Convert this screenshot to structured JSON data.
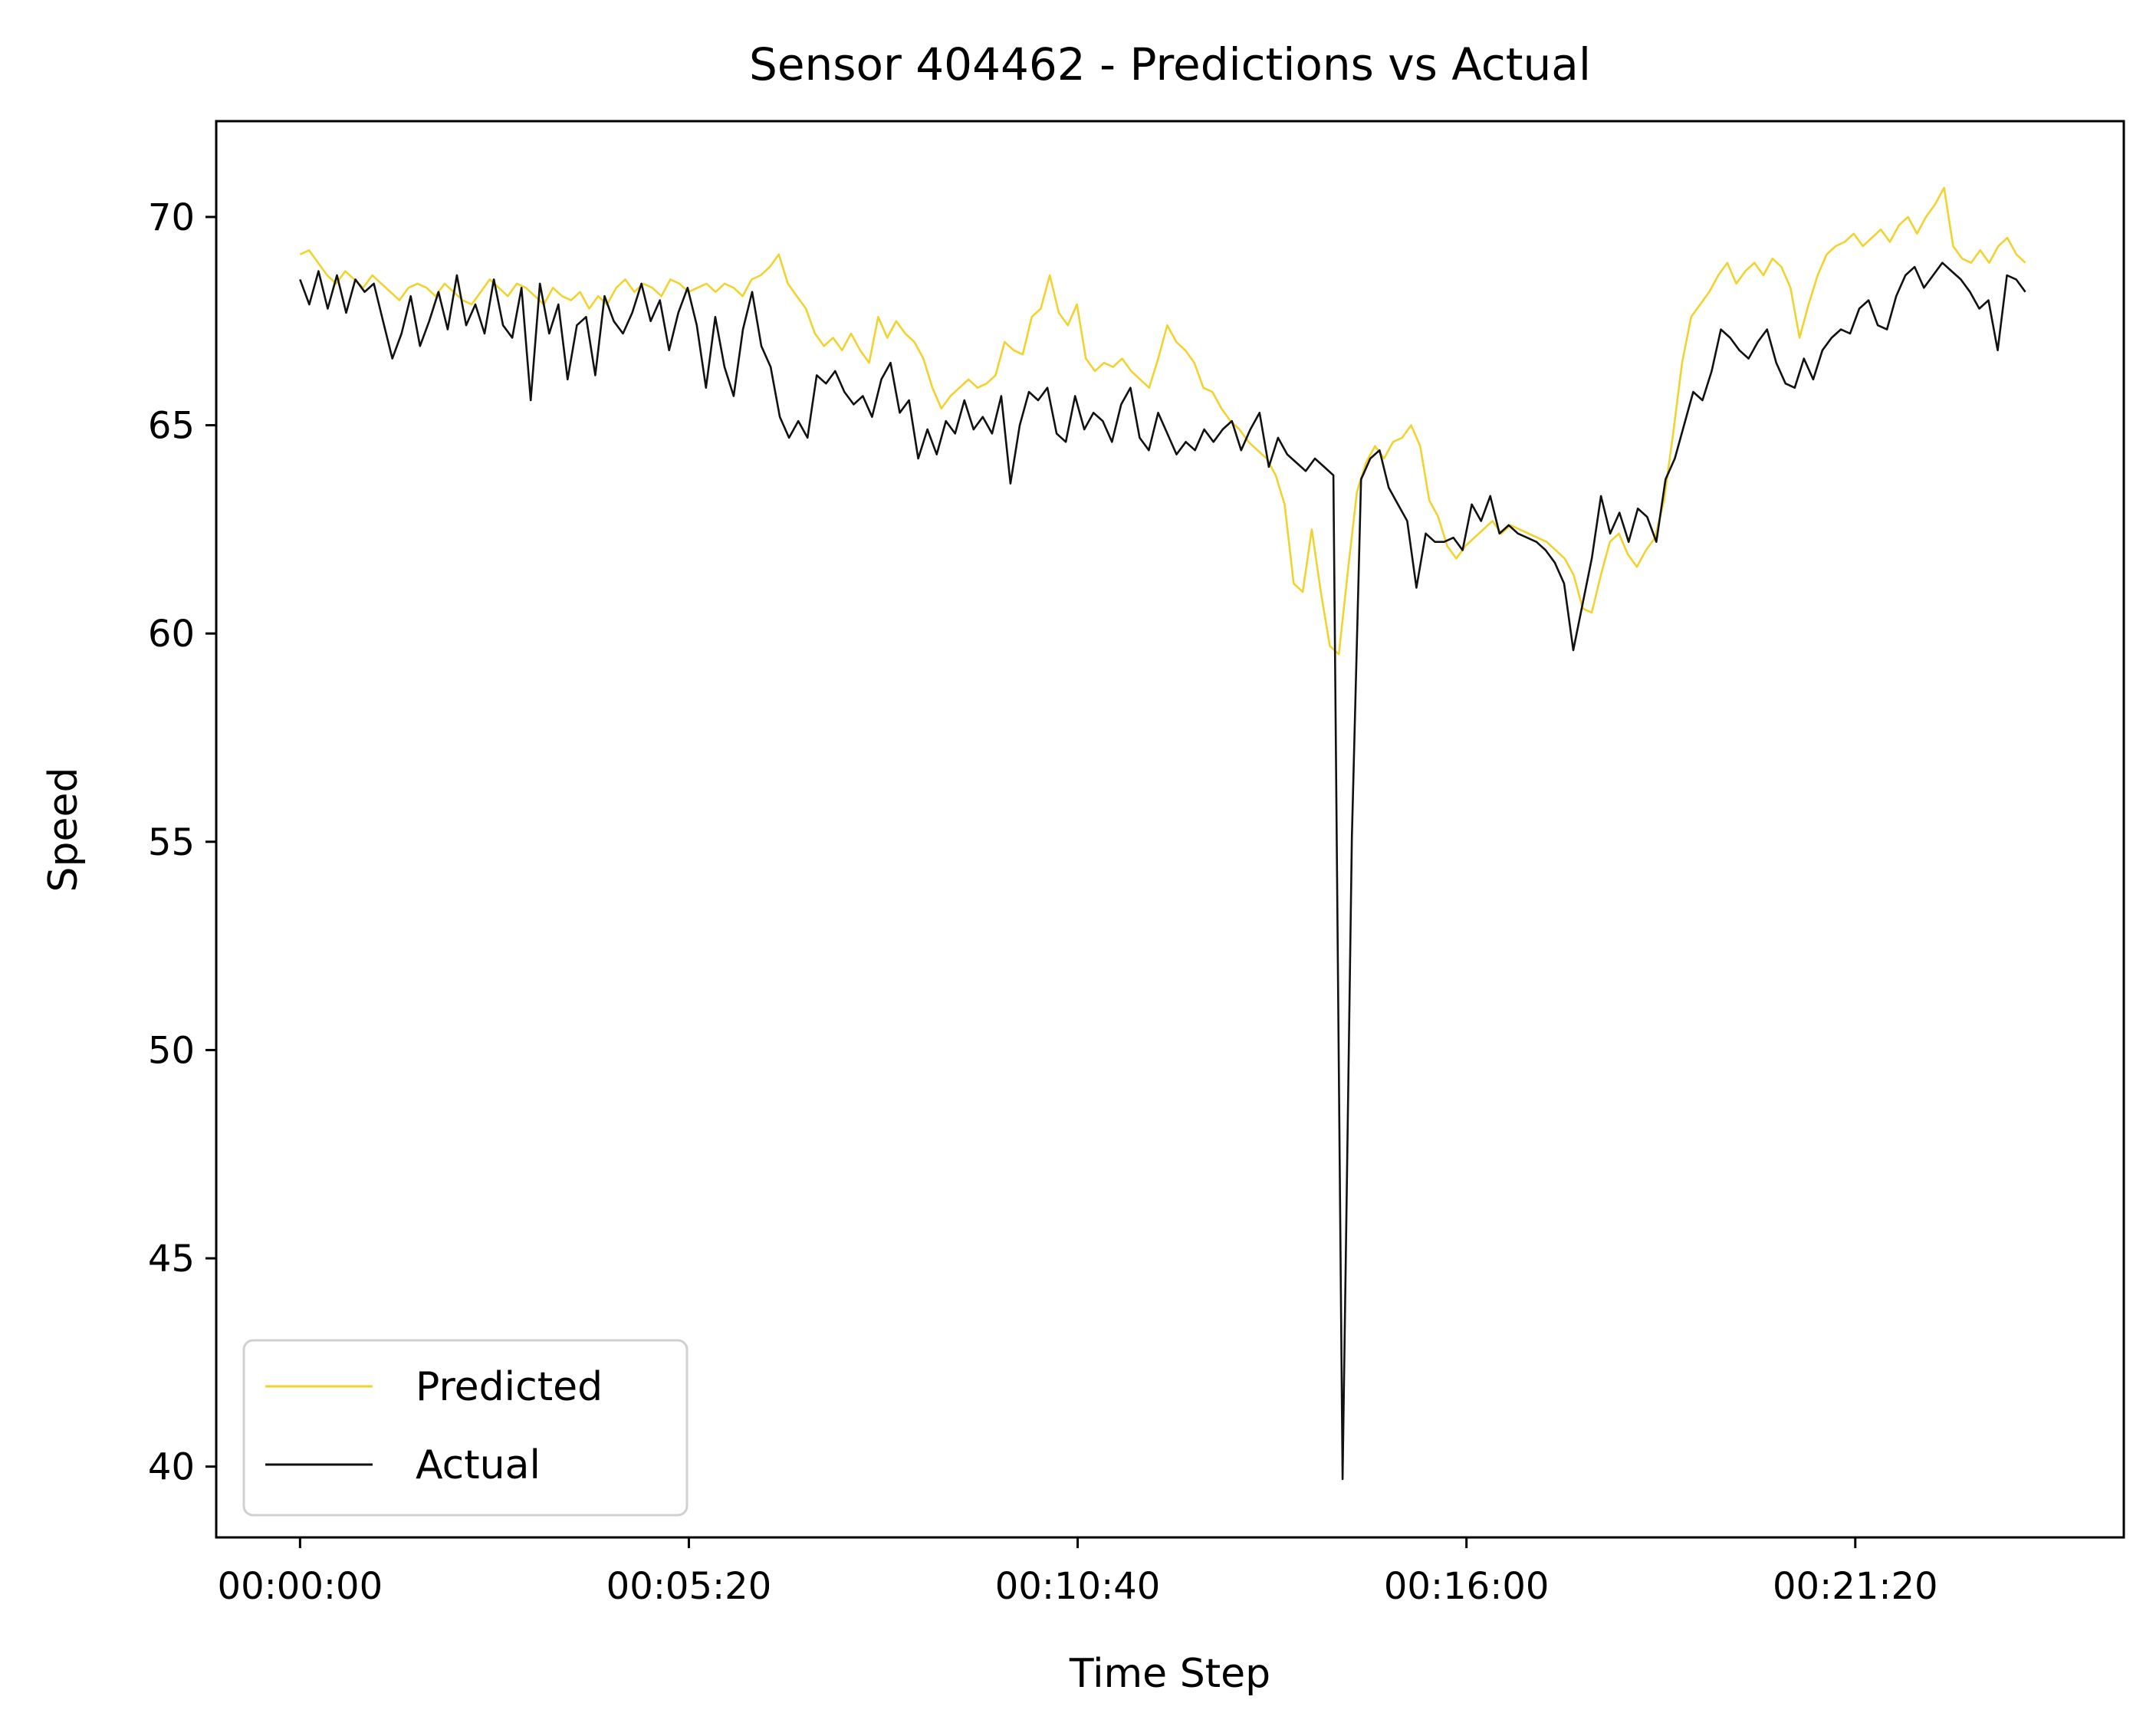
{
  "chart_data": {
    "type": "line",
    "title": "Sensor 404462 - Predictions vs Actual",
    "xlabel": "Time Step",
    "ylabel": "Speed",
    "x_start": "00:00:00",
    "x_end": "00:23:40",
    "xlim": [
      "-00:01:09",
      "00:25:01"
    ],
    "ylim": [
      38.3,
      72.3
    ],
    "x_ticks": [
      "00:00:00",
      "00:05:20",
      "00:10:40",
      "00:16:00",
      "00:21:20"
    ],
    "y_ticks": [
      40,
      45,
      50,
      55,
      60,
      65,
      70
    ],
    "grid": false,
    "legend_position": "lower-left",
    "series": [
      {
        "name": "Predicted",
        "color": "#f2d22e",
        "values": [
          69.1,
          69.2,
          68.9,
          68.6,
          68.4,
          68.7,
          68.5,
          68.3,
          68.6,
          68.4,
          68.2,
          68.0,
          68.3,
          68.4,
          68.3,
          68.1,
          68.4,
          68.2,
          68.0,
          67.9,
          68.2,
          68.5,
          68.3,
          68.1,
          68.4,
          68.3,
          68.1,
          67.9,
          68.3,
          68.1,
          68.0,
          68.2,
          67.8,
          68.1,
          67.9,
          68.3,
          68.5,
          68.2,
          68.4,
          68.3,
          68.1,
          68.5,
          68.4,
          68.2,
          68.3,
          68.4,
          68.2,
          68.4,
          68.3,
          68.1,
          68.5,
          68.6,
          68.8,
          69.1,
          68.4,
          68.1,
          67.8,
          67.2,
          66.9,
          67.1,
          66.8,
          67.2,
          66.8,
          66.5,
          67.6,
          67.1,
          67.5,
          67.2,
          67.0,
          66.6,
          65.9,
          65.4,
          65.7,
          65.9,
          66.1,
          65.9,
          66.0,
          66.2,
          67.0,
          66.8,
          66.7,
          67.6,
          67.8,
          68.6,
          67.7,
          67.4,
          67.9,
          66.6,
          66.3,
          66.5,
          66.4,
          66.6,
          66.3,
          66.1,
          65.9,
          66.6,
          67.4,
          67.0,
          66.8,
          66.5,
          65.9,
          65.8,
          65.4,
          65.1,
          64.9,
          64.6,
          64.4,
          64.2,
          63.8,
          63.1,
          61.2,
          61.0,
          62.5,
          61.0,
          59.7,
          59.5,
          61.5,
          63.4,
          64.1,
          64.5,
          64.2,
          64.6,
          64.7,
          65.0,
          64.5,
          63.2,
          62.8,
          62.1,
          61.8,
          62.1,
          62.3,
          62.5,
          62.7,
          62.4,
          62.6,
          62.5,
          62.4,
          62.3,
          62.2,
          62.0,
          61.8,
          61.4,
          60.6,
          60.5,
          61.4,
          62.2,
          62.4,
          61.9,
          61.6,
          62.0,
          62.3,
          63.2,
          64.8,
          66.5,
          67.6,
          67.9,
          68.2,
          68.6,
          68.9,
          68.4,
          68.7,
          68.9,
          68.6,
          69.0,
          68.8,
          68.3,
          67.1,
          67.9,
          68.6,
          69.1,
          69.3,
          69.4,
          69.6,
          69.3,
          69.5,
          69.7,
          69.4,
          69.8,
          70.0,
          69.6,
          70.0,
          70.3,
          70.7,
          69.3,
          69.0,
          68.9,
          69.2,
          68.9,
          69.3,
          69.5,
          69.1,
          68.9
        ]
      },
      {
        "name": "Actual",
        "color": "#111111",
        "values": [
          68.5,
          67.9,
          68.7,
          67.8,
          68.6,
          67.7,
          68.5,
          68.2,
          68.4,
          67.5,
          66.6,
          67.2,
          68.1,
          66.9,
          67.5,
          68.2,
          67.3,
          68.6,
          67.4,
          67.9,
          67.2,
          68.5,
          67.4,
          67.1,
          68.3,
          65.6,
          68.4,
          67.2,
          67.9,
          66.1,
          67.4,
          67.6,
          66.2,
          68.1,
          67.5,
          67.2,
          67.7,
          68.4,
          67.5,
          68.0,
          66.8,
          67.7,
          68.3,
          67.4,
          65.9,
          67.6,
          66.4,
          65.7,
          67.3,
          68.2,
          66.9,
          66.4,
          65.2,
          64.7,
          65.1,
          64.7,
          66.2,
          66.0,
          66.3,
          65.8,
          65.5,
          65.7,
          65.2,
          66.1,
          66.5,
          65.3,
          65.6,
          64.2,
          64.9,
          64.3,
          65.1,
          64.8,
          65.6,
          64.9,
          65.2,
          64.8,
          65.7,
          63.6,
          65.0,
          65.8,
          65.6,
          65.9,
          64.8,
          64.6,
          65.7,
          64.9,
          65.3,
          65.1,
          64.6,
          65.5,
          65.9,
          64.7,
          64.4,
          65.3,
          64.8,
          64.3,
          64.6,
          64.4,
          64.9,
          64.6,
          64.9,
          65.1,
          64.4,
          64.9,
          65.3,
          64.0,
          64.7,
          64.3,
          64.1,
          63.9,
          64.2,
          64.0,
          63.8,
          39.7,
          55.1,
          63.7,
          64.2,
          64.4,
          63.5,
          63.1,
          62.7,
          61.1,
          62.4,
          62.2,
          62.2,
          62.3,
          62.0,
          63.1,
          62.7,
          63.3,
          62.4,
          62.6,
          62.4,
          62.3,
          62.2,
          62.0,
          61.7,
          61.2,
          59.6,
          60.7,
          61.8,
          63.3,
          62.4,
          62.9,
          62.2,
          63.0,
          62.8,
          62.2,
          63.7,
          64.2,
          65.0,
          65.8,
          65.6,
          66.3,
          67.3,
          67.1,
          66.8,
          66.6,
          67.0,
          67.3,
          66.5,
          66.0,
          65.9,
          66.6,
          66.1,
          66.8,
          67.1,
          67.3,
          67.2,
          67.8,
          68.0,
          67.4,
          67.3,
          68.1,
          68.6,
          68.8,
          68.3,
          68.6,
          68.9,
          68.7,
          68.5,
          68.2,
          67.8,
          68.0,
          66.8,
          68.6,
          68.5,
          68.2
        ]
      }
    ]
  }
}
